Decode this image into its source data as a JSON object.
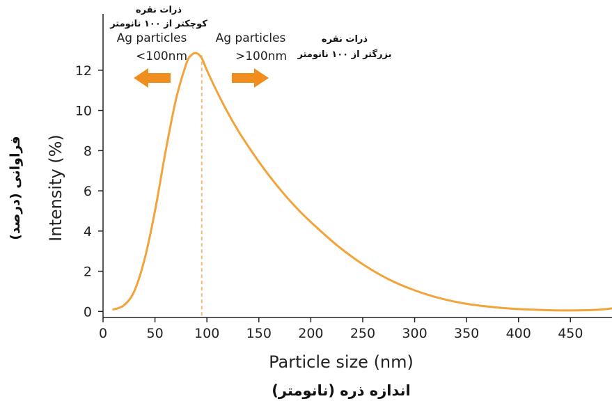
{
  "chart_data": {
    "type": "line",
    "xlabel": "Particle size (nm)",
    "xlabel_fa": "اندازه ذره (نانومتر)",
    "ylabel": "Intensity (%)",
    "ylabel_fa": "فراوانی (درصد)",
    "xlim": [
      0,
      490
    ],
    "ylim": [
      -0.3,
      14.8
    ],
    "x_ticks": [
      0,
      50,
      100,
      150,
      200,
      250,
      300,
      350,
      400,
      450
    ],
    "y_ticks": [
      0,
      2,
      4,
      6,
      8,
      10,
      12
    ],
    "grid": false,
    "colors": {
      "curve": "#f2a33a",
      "arrow": "#f08d1e",
      "divider": "#f2b978"
    },
    "series": [
      {
        "x": [
          10,
          20,
          30,
          40,
          50,
          60,
          70,
          80,
          85,
          90,
          95,
          100,
          110,
          120,
          130,
          140,
          150,
          160,
          170,
          180,
          190,
          200,
          225,
          250,
          275,
          300,
          325,
          350,
          375,
          400,
          425,
          450,
          475,
          490
        ],
        "y": [
          0.1,
          0.3,
          1.0,
          2.6,
          5.0,
          7.9,
          10.5,
          12.3,
          12.75,
          12.85,
          12.6,
          12.0,
          10.9,
          9.9,
          9.0,
          8.2,
          7.45,
          6.75,
          6.1,
          5.5,
          4.95,
          4.45,
          3.3,
          2.35,
          1.6,
          1.05,
          0.65,
          0.38,
          0.22,
          0.12,
          0.07,
          0.05,
          0.08,
          0.15
        ]
      }
    ],
    "divider_x": 95,
    "annotations": {
      "left_fa_1": "ذرات نقره",
      "left_fa_2": "کوچکتر از ۱۰۰ نانومتر",
      "left_en_1": "Ag particles",
      "left_en_2": "<100nm",
      "right_en_1": "Ag particles",
      "right_en_2": ">100nm",
      "right_fa_1": "ذرات نقره",
      "right_fa_2": "بزرگتر از ۱۰۰ نانومتر"
    }
  }
}
